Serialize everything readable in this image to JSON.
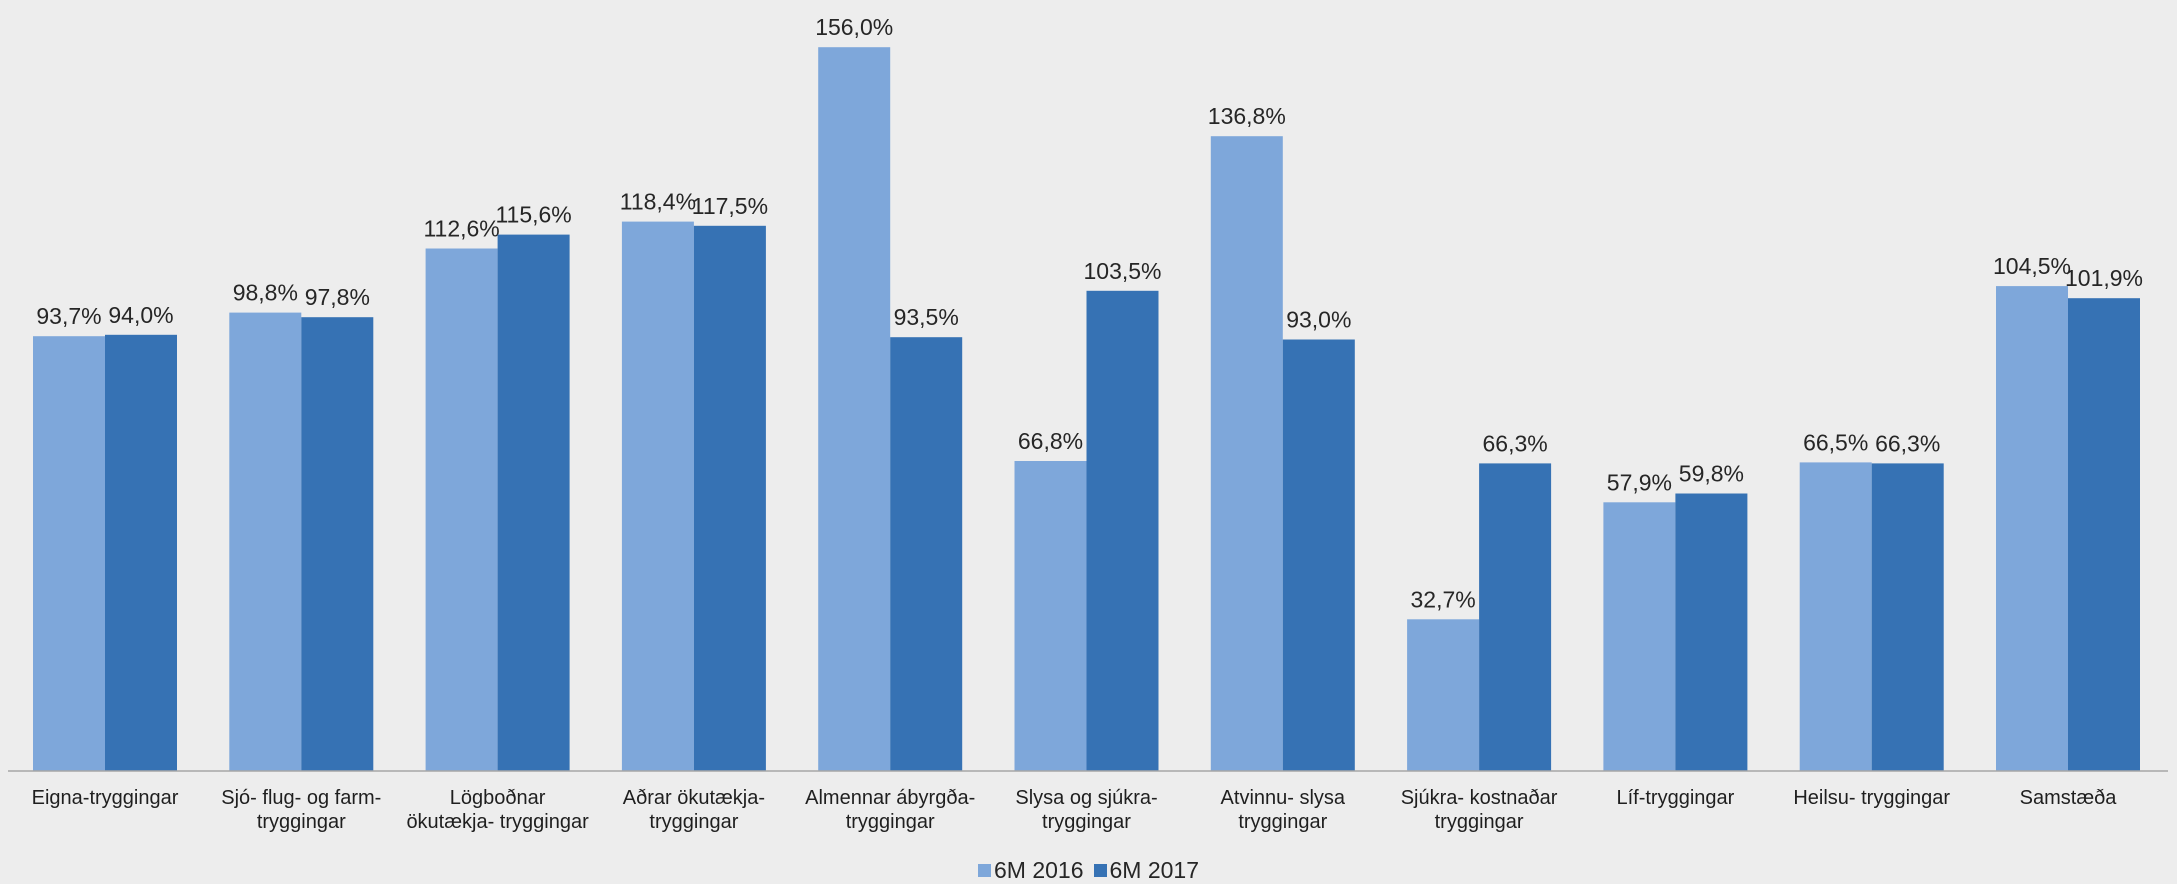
{
  "chart_data": {
    "type": "bar",
    "categories": [
      [
        "Eigna-tryggingar"
      ],
      [
        "Sjó- flug- og farm-",
        "tryggingar"
      ],
      [
        "Lögboðnar",
        "ökutækja- tryggingar"
      ],
      [
        "Aðrar ökutækja-",
        "tryggingar"
      ],
      [
        "Almennar ábyrgða-",
        "tryggingar"
      ],
      [
        "Slysa og sjúkra-",
        "tryggingar"
      ],
      [
        "Atvinnu- slysa",
        "tryggingar"
      ],
      [
        "Sjúkra- kostnaðar",
        "tryggingar"
      ],
      [
        "Líf-tryggingar"
      ],
      [
        "Heilsu-     tryggingar"
      ],
      [
        "Samstæða"
      ]
    ],
    "series": [
      {
        "name": "6M 2016",
        "color": "#7ea7da",
        "values": [
          93.7,
          98.8,
          112.6,
          118.4,
          156.0,
          66.8,
          136.8,
          32.7,
          57.9,
          66.5,
          104.5
        ],
        "labels": [
          "93,7%",
          "98,8%",
          "112,6%",
          "118,4%",
          "156,0%",
          "66,8%",
          "136,8%",
          "32,7%",
          "57,9%",
          "66,5%",
          "104,5%"
        ]
      },
      {
        "name": "6M 2017",
        "color": "#3672b4",
        "values": [
          94.0,
          97.8,
          115.6,
          117.5,
          93.5,
          103.5,
          93.0,
          66.3,
          59.8,
          66.3,
          101.9
        ],
        "labels": [
          "94,0%",
          "97,8%",
          "115,6%",
          "117,5%",
          "93,5%",
          "103,5%",
          "93,0%",
          "66,3%",
          "59,8%",
          "66,3%",
          "101,9%"
        ]
      }
    ],
    "ylim": [
      0,
      160
    ],
    "grid": false,
    "legend_position": "bottom"
  },
  "legend": {
    "series_1": "6M 2016",
    "series_2": "6M 2017"
  }
}
